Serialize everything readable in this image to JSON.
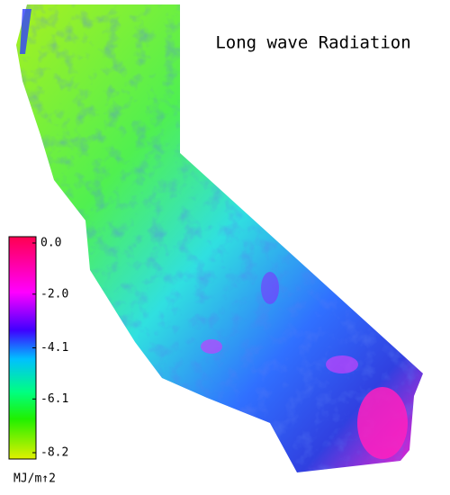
{
  "title": "Long wave Radiation",
  "colorbar": {
    "unit": "MJ/m↑2",
    "ticks": [
      {
        "value": 0,
        "label": "0.0"
      },
      {
        "value": -2,
        "label": "-2.0"
      },
      {
        "value": -4.1,
        "label": "-4.1"
      },
      {
        "value": -6.1,
        "label": "-6.1"
      },
      {
        "value": -8.2,
        "label": "-8.2"
      }
    ]
  }
}
